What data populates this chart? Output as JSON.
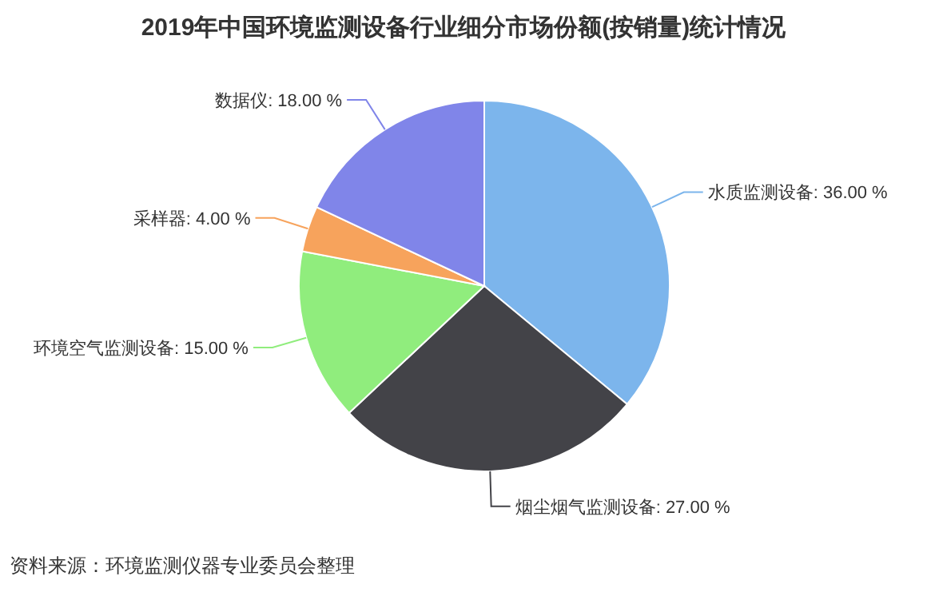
{
  "chart_data": {
    "type": "pie",
    "title": "2019年中国环境监测设备行业细分市场份额(按销量)统计情况",
    "categories": [
      "水质监测设备",
      "烟尘烟气监测设备",
      "环境空气监测设备",
      "采样器",
      "数据仪"
    ],
    "values": [
      36,
      27,
      15,
      4,
      18
    ],
    "value_labels": [
      "36.00 %",
      "27.00 %",
      "15.00 %",
      "4.00 %",
      "18.00 %"
    ],
    "colors": [
      "#7cb5ec",
      "#434348",
      "#90ed7d",
      "#f7a35c",
      "#8085e9"
    ],
    "annotations": [
      "资料来源：环境监测仪器专业委员会整理"
    ]
  }
}
